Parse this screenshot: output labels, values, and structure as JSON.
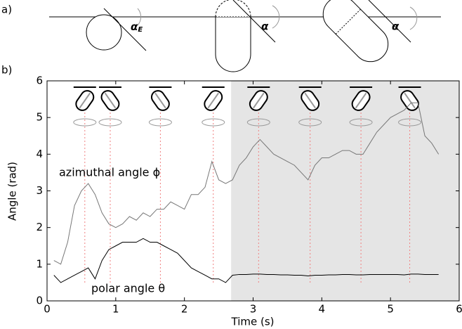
{
  "panel_a": {
    "label": "a)",
    "angle_labels": [
      "α",
      "α",
      "α"
    ],
    "subscript": "E"
  },
  "chart_data": {
    "type": "line",
    "panel_label": "b)",
    "xlabel": "Time (s)",
    "ylabel": "Angle (rad)",
    "xlim": [
      0,
      6
    ],
    "ylim": [
      0,
      6
    ],
    "xticks": [
      0,
      1,
      2,
      3,
      4,
      5,
      6
    ],
    "yticks": [
      0,
      1,
      2,
      3,
      4,
      5,
      6
    ],
    "x": [
      0.1,
      0.2,
      0.3,
      0.4,
      0.5,
      0.6,
      0.7,
      0.8,
      0.9,
      1.0,
      1.1,
      1.2,
      1.3,
      1.4,
      1.5,
      1.6,
      1.7,
      1.8,
      1.9,
      2.0,
      2.1,
      2.2,
      2.3,
      2.4,
      2.5,
      2.6,
      2.7,
      2.8,
      2.9,
      3.0,
      3.1,
      3.2,
      3.3,
      3.4,
      3.5,
      3.6,
      3.7,
      3.8,
      3.9,
      4.0,
      4.1,
      4.2,
      4.3,
      4.4,
      4.5,
      4.6,
      4.7,
      4.8,
      4.9,
      5.0,
      5.1,
      5.2,
      5.3,
      5.4,
      5.5,
      5.6,
      5.7
    ],
    "series": [
      {
        "name": "azimuthal angle ϕ",
        "color": "#777777",
        "values": [
          1.1,
          1.0,
          1.6,
          2.6,
          3.0,
          3.2,
          2.9,
          2.4,
          2.1,
          2.0,
          2.1,
          2.3,
          2.2,
          2.4,
          2.3,
          2.5,
          2.5,
          2.7,
          2.6,
          2.5,
          2.9,
          2.9,
          3.1,
          3.8,
          3.3,
          3.2,
          3.3,
          3.7,
          3.9,
          4.2,
          4.4,
          4.2,
          4.0,
          3.9,
          3.8,
          3.7,
          3.5,
          3.3,
          3.7,
          3.9,
          3.9,
          4.0,
          4.1,
          4.1,
          4.0,
          4.0,
          4.3,
          4.6,
          4.8,
          5.0,
          5.1,
          5.2,
          5.4,
          5.4,
          4.5,
          4.3,
          4.0
        ]
      },
      {
        "name": "polar angle θ",
        "color": "#000000",
        "values": [
          0.7,
          0.5,
          0.6,
          0.7,
          0.8,
          0.9,
          0.6,
          1.1,
          1.4,
          1.5,
          1.6,
          1.6,
          1.6,
          1.7,
          1.6,
          1.6,
          1.5,
          1.4,
          1.3,
          1.1,
          0.9,
          0.8,
          0.7,
          0.6,
          0.6,
          0.5,
          0.7,
          0.72,
          0.72,
          0.73,
          0.73,
          0.72,
          0.72,
          0.71,
          0.71,
          0.7,
          0.7,
          0.68,
          0.7,
          0.7,
          0.71,
          0.71,
          0.72,
          0.72,
          0.71,
          0.71,
          0.72,
          0.72,
          0.72,
          0.72,
          0.72,
          0.71,
          0.73,
          0.73,
          0.72,
          0.72,
          0.72
        ]
      }
    ],
    "events": [
      0.55,
      0.92,
      1.65,
      2.42,
      3.08,
      3.83,
      4.57,
      5.28
    ],
    "shaded_from": 2.68,
    "shade_color": "#e5e5e5",
    "event_color": "#f08080"
  }
}
